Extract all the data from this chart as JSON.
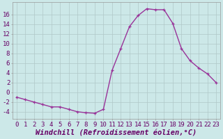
{
  "hours": [
    0,
    1,
    2,
    3,
    4,
    5,
    6,
    7,
    8,
    9,
    10,
    11,
    12,
    13,
    14,
    15,
    16,
    17,
    18,
    19,
    20,
    21,
    22,
    23
  ],
  "values": [
    -1.0,
    -1.5,
    -2.0,
    -2.5,
    -3.0,
    -3.0,
    -3.5,
    -4.0,
    -4.2,
    -4.3,
    -3.5,
    4.5,
    9.0,
    13.5,
    15.8,
    17.2,
    17.0,
    17.0,
    14.2,
    9.0,
    6.5,
    5.0,
    3.8,
    2.0
  ],
  "line_color": "#993399",
  "marker": "+",
  "bg_color": "#cce8e8",
  "grid_color": "#b0c8c8",
  "xlabel": "Windchill (Refroidissement éolien,°C)",
  "xlabel_fontsize": 7.5,
  "tick_label_fontsize": 6.5,
  "yticks": [
    -4,
    -2,
    0,
    2,
    4,
    6,
    8,
    10,
    12,
    14,
    16
  ],
  "ylim": [
    -5.5,
    18.5
  ],
  "xlim": [
    -0.5,
    23.5
  ],
  "spine_color": "#999999"
}
